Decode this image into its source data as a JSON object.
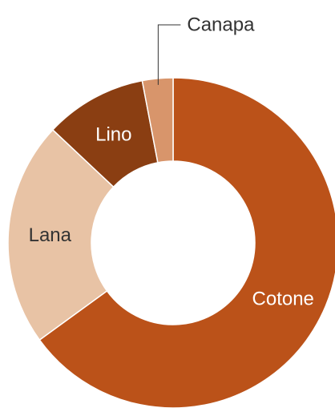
{
  "chart_data": {
    "type": "pie",
    "variant": "donut",
    "title": "",
    "slices": [
      {
        "label": "Cotone",
        "value": 65,
        "color": "#bb5219",
        "label_color": "#ffffff"
      },
      {
        "label": "Lana",
        "value": 22,
        "color": "#e8c3a5",
        "label_color": "#333333"
      },
      {
        "label": "Lino",
        "value": 10,
        "color": "#8a3e12",
        "label_color": "#ffffff"
      },
      {
        "label": "Canapa",
        "value": 3,
        "color": "#d8956b",
        "label_color": "#333333"
      }
    ],
    "legend": "none"
  }
}
